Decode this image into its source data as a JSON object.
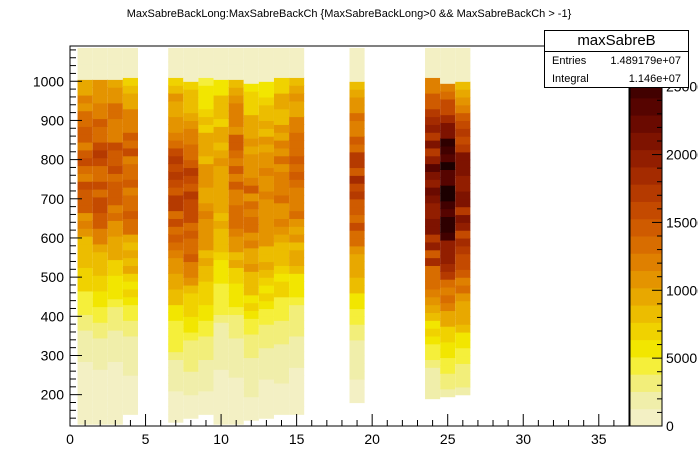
{
  "title": "MaxSabreBackLong:MaxSabreBackCh {MaxSabreBackLong>0 && MaxSabreBackCh > -1}",
  "stats": {
    "name": "maxSabreB",
    "entries_label": "Entries",
    "entries_value": "1.489179e+07",
    "integral_label": "Integral",
    "integral_value": "1.146e+07"
  },
  "chart_data": {
    "type": "heatmap",
    "title": "MaxSabreBackLong:MaxSabreBackCh {MaxSabreBackLong>0 && MaxSabreBackCh > -1}",
    "xlabel": "",
    "ylabel": "",
    "xlim": [
      0,
      37
    ],
    "ylim": [
      120,
      1090
    ],
    "x_ticks": [
      0,
      5,
      10,
      15,
      20,
      25,
      30,
      35
    ],
    "y_ticks": [
      200,
      300,
      400,
      500,
      600,
      700,
      800,
      900,
      1000
    ],
    "z_ticks": [
      0,
      5000,
      10000,
      15000,
      20000,
      25000
    ],
    "z_tick_labels": [
      "0",
      "5000",
      "10000",
      "15000",
      "20000",
      "25000"
    ],
    "zlim": [
      0,
      28000
    ],
    "palette": [
      "#f3f0c4",
      "#f0eeaa",
      "#f2ee7a",
      "#f5ef3a",
      "#f2e600",
      "#f0d200",
      "#ecbd00",
      "#e8a800",
      "#e49400",
      "#df8000",
      "#d86d00",
      "#cf5b00",
      "#c44a00",
      "#b53a00",
      "#a42b00",
      "#921e00",
      "#7e1300",
      "#6a0a00",
      "#560400",
      "#420100",
      "#2e0000",
      "#1c0000"
    ],
    "columns": [
      {
        "x": 1,
        "ymin": 125,
        "ymax": 1085,
        "peak": 790,
        "max": 14500
      },
      {
        "x": 2,
        "ymin": 125,
        "ymax": 1085,
        "peak": 780,
        "max": 15500
      },
      {
        "x": 3,
        "ymin": 125,
        "ymax": 1085,
        "peak": 800,
        "max": 15000
      },
      {
        "x": 4,
        "ymin": 150,
        "ymax": 1085,
        "peak": 760,
        "max": 14000
      },
      {
        "x": 7,
        "ymin": 130,
        "ymax": 1085,
        "peak": 720,
        "max": 16000
      },
      {
        "x": 8,
        "ymin": 140,
        "ymax": 1085,
        "peak": 700,
        "max": 15500
      },
      {
        "x": 9,
        "ymin": 150,
        "ymax": 1085,
        "peak": 690,
        "max": 11000
      },
      {
        "x": 10,
        "ymin": 125,
        "ymax": 1085,
        "peak": 750,
        "max": 10500
      },
      {
        "x": 11,
        "ymin": 125,
        "ymax": 1085,
        "peak": 760,
        "max": 14000
      },
      {
        "x": 12,
        "ymin": 135,
        "ymax": 1085,
        "peak": 700,
        "max": 13000
      },
      {
        "x": 13,
        "ymin": 140,
        "ymax": 1085,
        "peak": 720,
        "max": 11500
      },
      {
        "x": 14,
        "ymin": 150,
        "ymax": 1085,
        "peak": 740,
        "max": 12500
      },
      {
        "x": 15,
        "ymin": 150,
        "ymax": 1085,
        "peak": 770,
        "max": 13500
      },
      {
        "x": 19,
        "ymin": 180,
        "ymax": 1085,
        "peak": 760,
        "max": 16500
      },
      {
        "x": 24,
        "ymin": 190,
        "ymax": 1085,
        "peak": 730,
        "max": 22000
      },
      {
        "x": 25,
        "ymin": 195,
        "ymax": 1085,
        "peak": 720,
        "max": 26500
      },
      {
        "x": 26,
        "ymin": 200,
        "ymax": 1085,
        "peak": 700,
        "max": 20500
      }
    ],
    "grid": false,
    "legend": "colorbar-right"
  }
}
